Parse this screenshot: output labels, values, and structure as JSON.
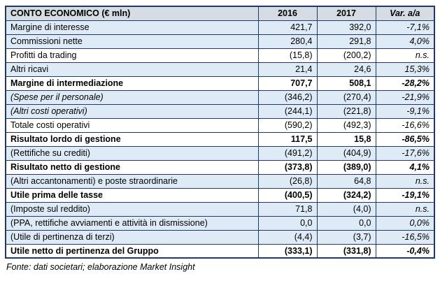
{
  "table": {
    "header": {
      "label": "CONTO ECONOMICO (€ mln)",
      "y2016": "2016",
      "y2017": "2017",
      "var": "Var. a/a"
    },
    "rows": [
      {
        "label": "Margine di interesse",
        "y2016": "421,7",
        "y2017": "392,0",
        "var": "-7,1%"
      },
      {
        "label": "Commissioni nette",
        "y2016": "280,4",
        "y2017": "291,8",
        "var": "4,0%"
      },
      {
        "label": "Profitti da trading",
        "y2016": "(15,8)",
        "y2017": "(200,2)",
        "var": "n.s."
      },
      {
        "label": "Altri ricavi",
        "y2016": "21,4",
        "y2017": "24,6",
        "var": "15,3%"
      },
      {
        "label": "Margine di intermediazione",
        "y2016": "707,7",
        "y2017": "508,1",
        "var": "-28,2%"
      },
      {
        "label": "(Spese per il personale)",
        "y2016": "(346,2)",
        "y2017": "(270,4)",
        "var": "-21,9%"
      },
      {
        "label": "(Altri costi operativi)",
        "y2016": "(244,1)",
        "y2017": "(221,8)",
        "var": "-9,1%"
      },
      {
        "label": "Totale costi operativi",
        "y2016": "(590,2)",
        "y2017": "(492,3)",
        "var": "-16,6%"
      },
      {
        "label": "Risultato lordo di gestione",
        "y2016": "117,5",
        "y2017": "15,8",
        "var": "-86,5%"
      },
      {
        "label": "(Rettifiche su crediti)",
        "y2016": "(491,2)",
        "y2017": "(404,9)",
        "var": "-17,6%"
      },
      {
        "label": "Risultato netto di gestione",
        "y2016": "(373,8)",
        "y2017": "(389,0)",
        "var": "4,1%"
      },
      {
        "label": "(Altri accantonamenti) e poste straordinarie",
        "y2016": "(26,8)",
        "y2017": "64,8",
        "var": "n.s."
      },
      {
        "label": "Utile prima delle tasse",
        "y2016": "(400,5)",
        "y2017": "(324,2)",
        "var": "-19,1%"
      },
      {
        "label": "(Imposte sul reddito)",
        "y2016": "71,8",
        "y2017": "(4,0)",
        "var": "n.s."
      },
      {
        "label": "(PPA, rettifiche avviamenti e attività in dismissione)",
        "y2016": "0,0",
        "y2017": "0,0",
        "var": "0,0%"
      },
      {
        "label": "(Utile di pertinenza di terzi)",
        "y2016": "(4,4)",
        "y2017": "(3,7)",
        "var": "-16,5%"
      },
      {
        "label": "Utile netto di pertinenza del Gruppo",
        "y2016": "(333,1)",
        "y2017": "(331,8)",
        "var": "-0,4%"
      }
    ]
  },
  "footer": {
    "source": "Fonte: dati societari; elaborazione Market Insight"
  },
  "colors": {
    "border": "#1f3864",
    "header_bg": "#d6dce4",
    "band_bg": "#deeaf6"
  }
}
